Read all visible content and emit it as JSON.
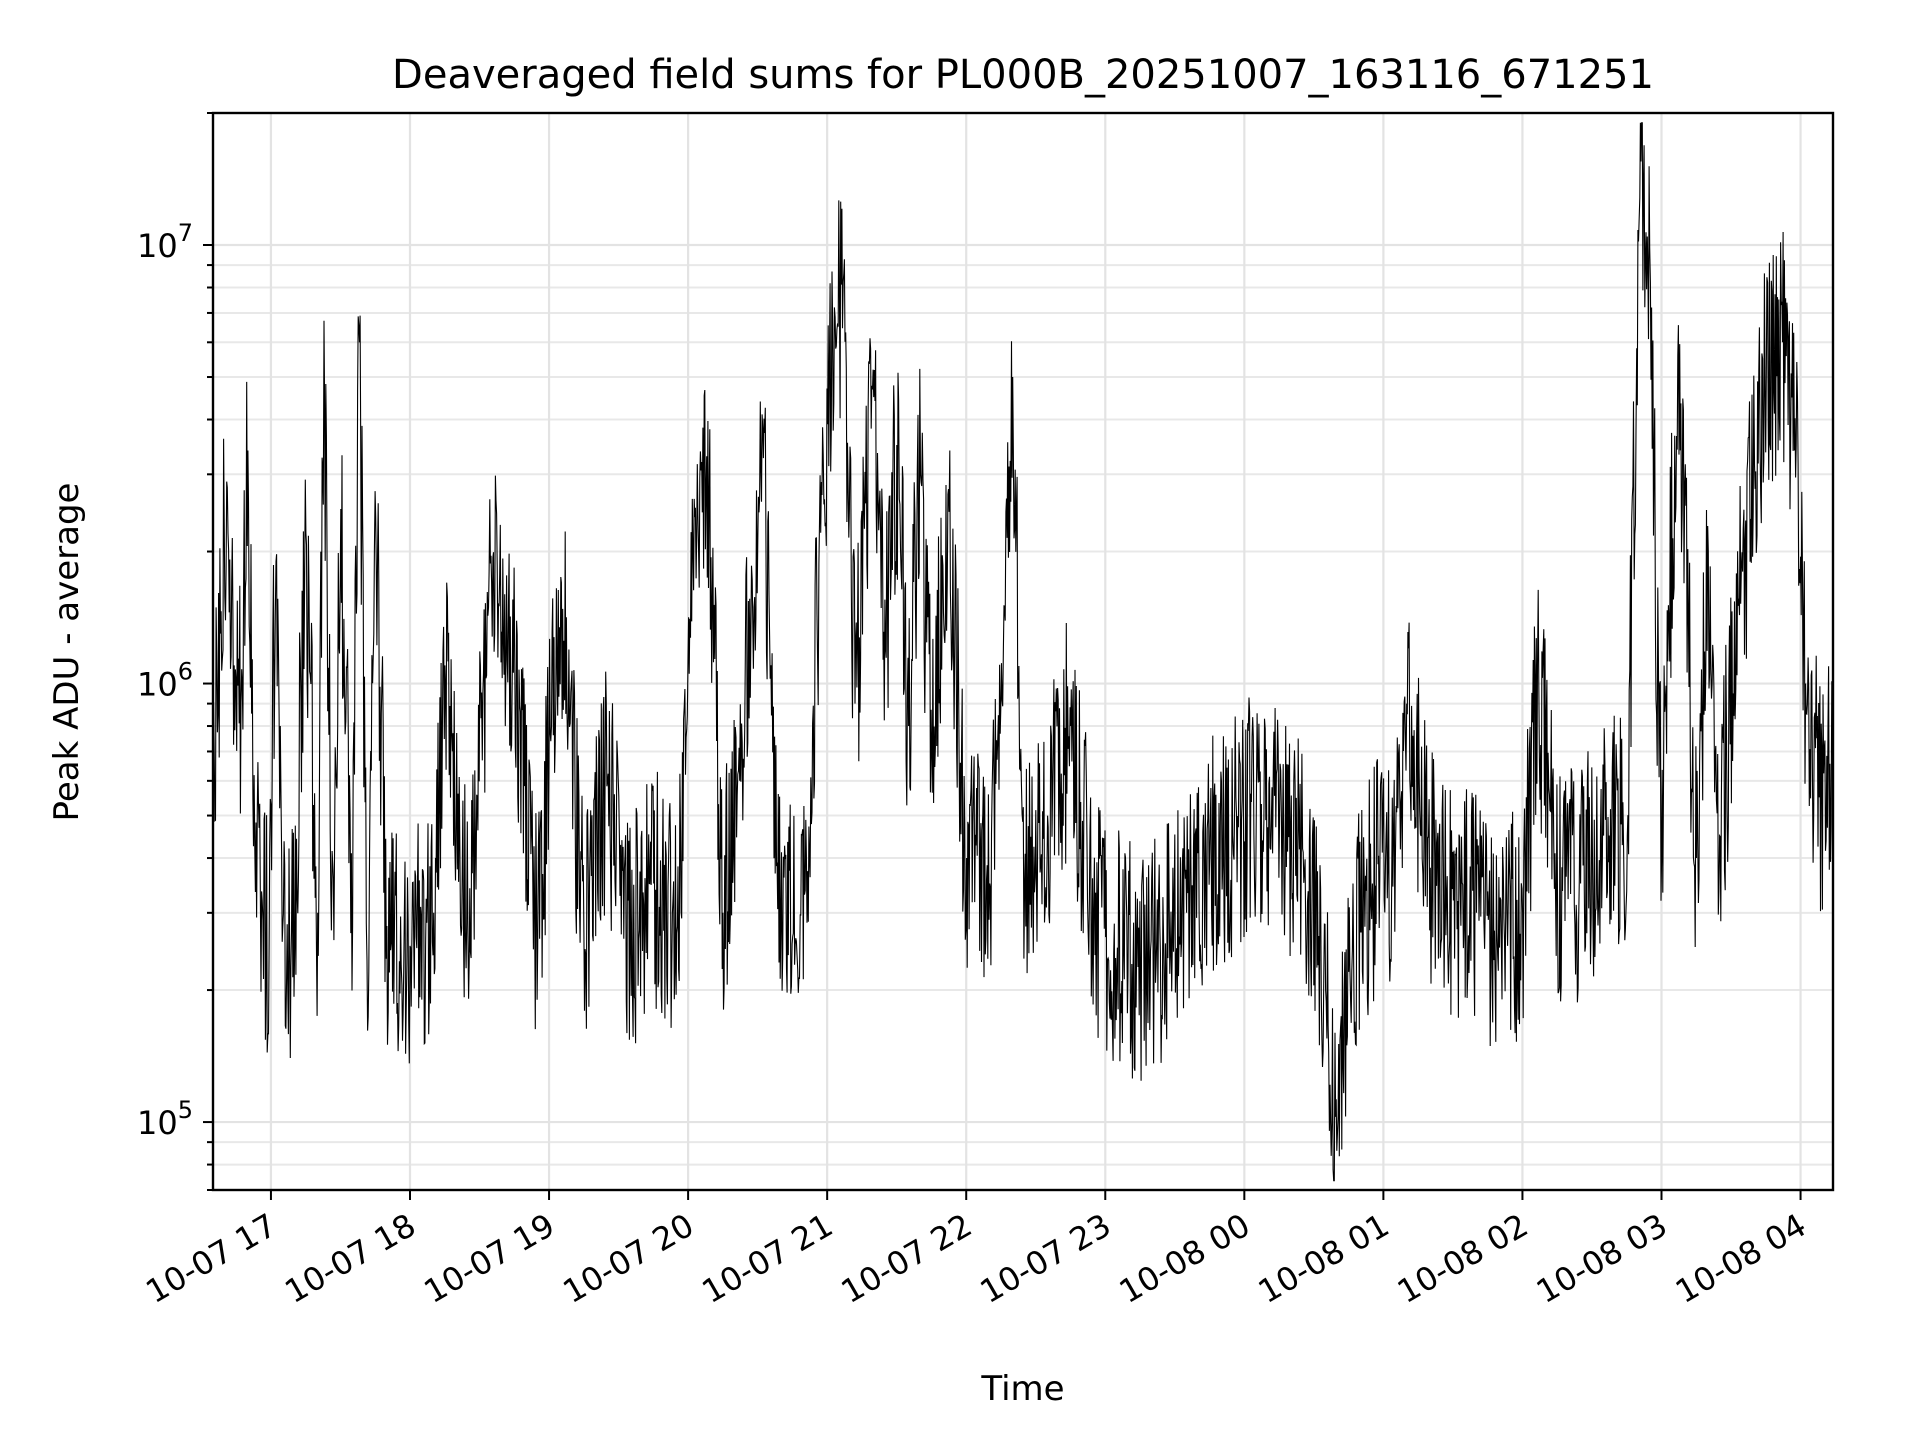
{
  "chart_data": {
    "type": "line",
    "title": "Deaveraged field sums for PL000B_20251007_163116_671251",
    "xlabel": "Time",
    "ylabel": "Peak ADU - average",
    "y_scale": "log",
    "xlim": [
      "2025-10-07 16:35",
      "2025-10-08 04:14"
    ],
    "ylim": [
      70000,
      20000000
    ],
    "grid": true,
    "legend": "none",
    "line_color": "#000000",
    "x_ticks": [
      "10-07 17",
      "10-07 18",
      "10-07 19",
      "10-07 20",
      "10-07 21",
      "10-07 22",
      "10-07 23",
      "10-08 00",
      "10-08 01",
      "10-08 02",
      "10-08 03",
      "10-08 04"
    ],
    "y_ticks": [
      {
        "base": "10",
        "exp": "5",
        "value": 100000
      },
      {
        "base": "10",
        "exp": "6",
        "value": 1000000
      },
      {
        "base": "10",
        "exp": "7",
        "value": 10000000
      }
    ],
    "series": [
      {
        "points": [
          [
            "2025-10-07 16:35",
            580000
          ],
          [
            "2025-10-07 16:38",
            1300000
          ],
          [
            "2025-10-07 16:41",
            2800000
          ],
          [
            "2025-10-07 16:44",
            1100000
          ],
          [
            "2025-10-07 16:47",
            900000
          ],
          [
            "2025-10-07 16:50",
            3400000
          ],
          [
            "2025-10-07 16:53",
            420000
          ],
          [
            "2025-10-07 16:56",
            320000
          ],
          [
            "2025-10-07 16:59",
            250000
          ],
          [
            "2025-10-07 17:02",
            1900000
          ],
          [
            "2025-10-07 17:05",
            280000
          ],
          [
            "2025-10-07 17:10",
            250000
          ],
          [
            "2025-10-07 17:15",
            2200000
          ],
          [
            "2025-10-07 17:20",
            300000
          ],
          [
            "2025-10-07 17:23",
            4300000
          ],
          [
            "2025-10-07 17:27",
            260000
          ],
          [
            "2025-10-07 17:30",
            2500000
          ],
          [
            "2025-10-07 17:35",
            280000
          ],
          [
            "2025-10-07 17:38",
            6000000
          ],
          [
            "2025-10-07 17:42",
            220000
          ],
          [
            "2025-10-07 17:45",
            2400000
          ],
          [
            "2025-10-07 17:50",
            280000
          ],
          [
            "2025-10-07 18:00",
            250000
          ],
          [
            "2025-10-07 18:10",
            300000
          ],
          [
            "2025-10-07 18:15",
            1100000
          ],
          [
            "2025-10-07 18:25",
            270000
          ],
          [
            "2025-10-07 18:35",
            1700000
          ],
          [
            "2025-10-07 18:45",
            1200000
          ],
          [
            "2025-10-07 18:55",
            250000
          ],
          [
            "2025-10-07 19:05",
            1750000
          ],
          [
            "2025-10-07 19:15",
            270000
          ],
          [
            "2025-10-07 19:25",
            600000
          ],
          [
            "2025-10-07 19:35",
            260000
          ],
          [
            "2025-10-07 19:45",
            350000
          ],
          [
            "2025-10-07 19:55",
            270000
          ],
          [
            "2025-10-07 20:02",
            2000000
          ],
          [
            "2025-10-07 20:08",
            3300000
          ],
          [
            "2025-10-07 20:15",
            300000
          ],
          [
            "2025-10-07 20:22",
            600000
          ],
          [
            "2025-10-07 20:32",
            3800000
          ],
          [
            "2025-10-07 20:40",
            280000
          ],
          [
            "2025-10-07 20:50",
            330000
          ],
          [
            "2025-10-07 21:00",
            3900000
          ],
          [
            "2025-10-07 21:07",
            8600000
          ],
          [
            "2025-10-07 21:12",
            900000
          ],
          [
            "2025-10-07 21:20",
            4500000
          ],
          [
            "2025-10-07 21:25",
            1200000
          ],
          [
            "2025-10-07 21:30",
            3500000
          ],
          [
            "2025-10-07 21:35",
            800000
          ],
          [
            "2025-10-07 21:40",
            3000000
          ],
          [
            "2025-10-07 21:45",
            700000
          ],
          [
            "2025-10-07 21:52",
            2700000
          ],
          [
            "2025-10-07 22:00",
            400000
          ],
          [
            "2025-10-07 22:10",
            350000
          ],
          [
            "2025-10-07 22:20",
            5000000
          ],
          [
            "2025-10-07 22:25",
            350000
          ],
          [
            "2025-10-07 22:35",
            500000
          ],
          [
            "2025-10-07 22:45",
            800000
          ],
          [
            "2025-10-07 22:55",
            300000
          ],
          [
            "2025-10-07 23:05",
            250000
          ],
          [
            "2025-10-07 23:15",
            220000
          ],
          [
            "2025-10-07 23:25",
            260000
          ],
          [
            "2025-10-07 23:35",
            300000
          ],
          [
            "2025-10-07 23:45",
            400000
          ],
          [
            "2025-10-07 23:55",
            450000
          ],
          [
            "2025-10-08 00:05",
            550000
          ],
          [
            "2025-10-08 00:15",
            480000
          ],
          [
            "2025-10-08 00:25",
            420000
          ],
          [
            "2025-10-08 00:35",
            200000
          ],
          [
            "2025-10-08 00:40",
            95000
          ],
          [
            "2025-10-08 00:45",
            220000
          ],
          [
            "2025-10-08 00:55",
            350000
          ],
          [
            "2025-10-08 01:05",
            400000
          ],
          [
            "2025-10-08 01:10",
            900000
          ],
          [
            "2025-10-08 01:20",
            380000
          ],
          [
            "2025-10-08 01:30",
            320000
          ],
          [
            "2025-10-08 01:40",
            300000
          ],
          [
            "2025-10-08 01:50",
            250000
          ],
          [
            "2025-10-08 02:00",
            300000
          ],
          [
            "2025-10-08 02:07",
            1000000
          ],
          [
            "2025-10-08 02:15",
            330000
          ],
          [
            "2025-10-08 02:25",
            350000
          ],
          [
            "2025-10-08 02:35",
            450000
          ],
          [
            "2025-10-08 02:45",
            450000
          ],
          [
            "2025-10-08 02:51",
            15500000
          ],
          [
            "2025-10-08 02:55",
            8200000
          ],
          [
            "2025-10-08 03:00",
            400000
          ],
          [
            "2025-10-08 03:07",
            5600000
          ],
          [
            "2025-10-08 03:15",
            400000
          ],
          [
            "2025-10-08 03:20",
            2000000
          ],
          [
            "2025-10-08 03:25",
            450000
          ],
          [
            "2025-10-08 03:35",
            1800000
          ],
          [
            "2025-10-08 03:45",
            5000000
          ],
          [
            "2025-10-08 03:52",
            6000000
          ],
          [
            "2025-10-08 03:58",
            3500000
          ],
          [
            "2025-10-08 04:02",
            1000000
          ],
          [
            "2025-10-08 04:08",
            550000
          ],
          [
            "2025-10-08 04:14",
            600000
          ]
        ]
      }
    ]
  }
}
